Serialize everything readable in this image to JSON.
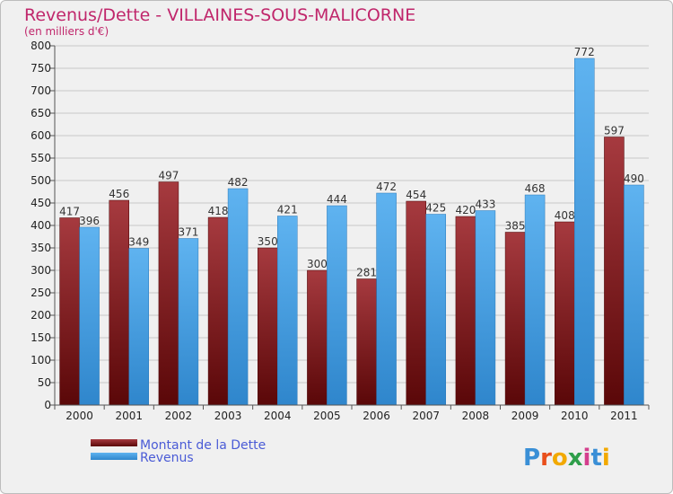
{
  "chart_data": {
    "type": "bar",
    "title": "Revenus/Dette - VILLAINES-SOUS-MALICORNE",
    "subtitle": "(en milliers d'€)",
    "categories": [
      "2000",
      "2001",
      "2002",
      "2003",
      "2004",
      "2005",
      "2006",
      "2007",
      "2008",
      "2009",
      "2010",
      "2011"
    ],
    "series": [
      {
        "name": "Montant de la Dette",
        "values": [
          417,
          456,
          497,
          418,
          350,
          300,
          281,
          454,
          420,
          385,
          408,
          597
        ],
        "color": "#7b1e24"
      },
      {
        "name": "Revenus",
        "values": [
          396,
          349,
          371,
          482,
          421,
          444,
          472,
          425,
          433,
          468,
          772,
          490
        ],
        "color": "#4aa3e6"
      }
    ],
    "ylim": [
      0,
      800
    ],
    "yticks": [
      0,
      50,
      100,
      150,
      200,
      250,
      300,
      350,
      400,
      450,
      500,
      550,
      600,
      650,
      700,
      750,
      800
    ],
    "grid": true,
    "legend_position": "bottom-left"
  },
  "logo": {
    "text": "Proxiti"
  }
}
